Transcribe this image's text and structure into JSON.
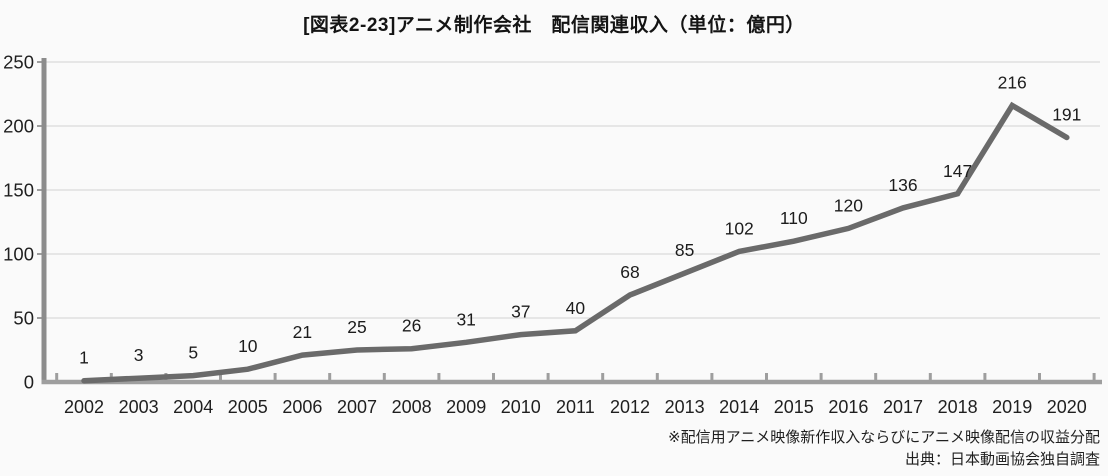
{
  "title": "[図表2-23]アニメ制作会社　配信関連収入（単位：億円）",
  "footnotes": {
    "note": "※配信用アニメ映像新作収入ならびにアニメ映像配信の収益分配",
    "source": "出典：日本動画協会独自調査"
  },
  "chart_data": {
    "type": "line",
    "title": "[図表2-23]アニメ制作会社　配信関連収入（単位：億円）",
    "categories": [
      "2002",
      "2003",
      "2004",
      "2005",
      "2006",
      "2007",
      "2008",
      "2009",
      "2010",
      "2011",
      "2012",
      "2013",
      "2014",
      "2015",
      "2016",
      "2017",
      "2018",
      "2019",
      "2020"
    ],
    "values": [
      1,
      3,
      5,
      10,
      21,
      25,
      26,
      31,
      37,
      40,
      68,
      85,
      102,
      110,
      120,
      136,
      147,
      216,
      191
    ],
    "xlabel": "",
    "ylabel": "",
    "unit": "億円",
    "ylim": [
      0,
      250
    ],
    "yticks": [
      0,
      50,
      100,
      150,
      200,
      250
    ],
    "grid": true,
    "legend": "none",
    "colors": {
      "line": "#6a6a6a",
      "grid": "#dbdbdb",
      "y_axis": "#8c8c8c",
      "x_axis": "#9e9e9e",
      "tick": "#9e9e9e",
      "label": "#1c1c1c",
      "axis_label": "#1f1f1f"
    }
  }
}
